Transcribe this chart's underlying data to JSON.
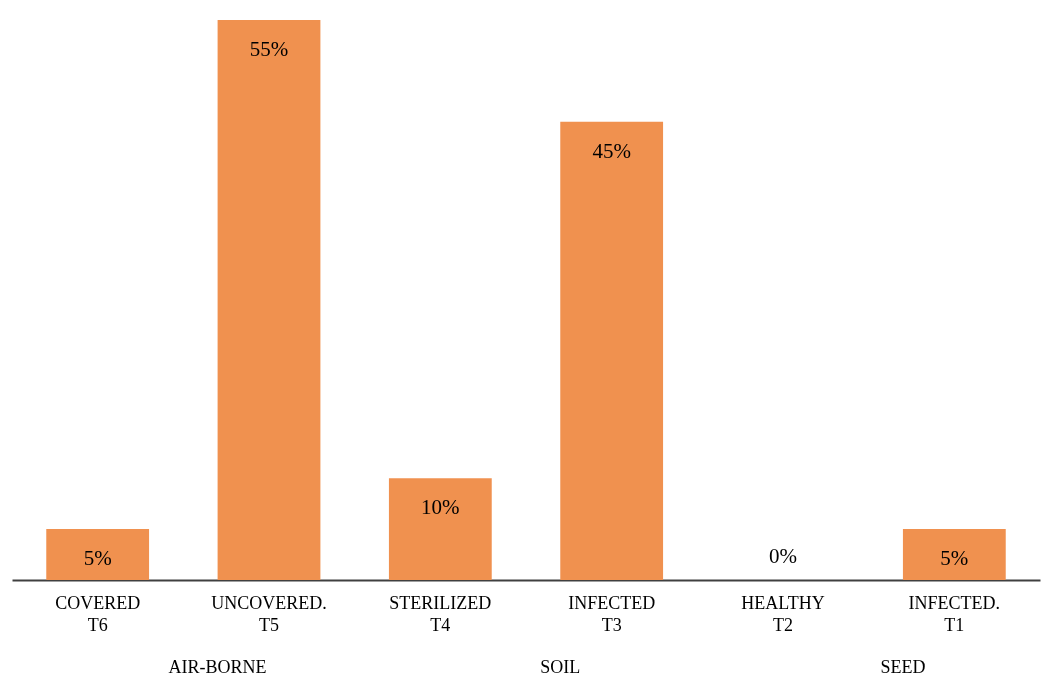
{
  "chart_data": {
    "type": "bar",
    "categories": [
      "COVERED T6",
      "UNCOVERED. T5",
      "STERILIZED T4",
      "INFECTED T3",
      "HEALTHY T2",
      "INFECTED. T1"
    ],
    "values": [
      5,
      55,
      10,
      45,
      0,
      5
    ],
    "value_labels": [
      "5%",
      "55%",
      "10%",
      "45%",
      "0%",
      "5%"
    ],
    "color": "#f0914f",
    "annotations": [
      "AIR-BORNE",
      "SOIL",
      "SEED"
    ]
  }
}
